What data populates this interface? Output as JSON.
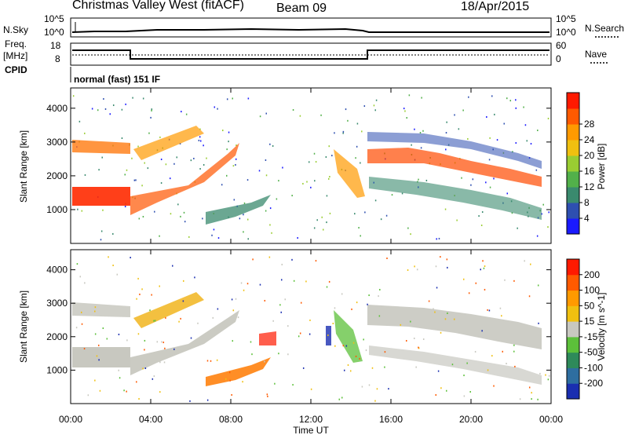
{
  "header": {
    "station": "Christmas Valley West (fitACF)",
    "beam": "Beam 09",
    "date": "18/Apr/2015",
    "cpid_label": "CPID",
    "cpid_value": "normal (fast) 151 IF"
  },
  "strips": {
    "nsky_label": "N.Sky",
    "nsky_top": "10^5",
    "nsky_bottom": "10^0",
    "nsearch_label": "N.Search",
    "nsearch_top": "10^5",
    "nsearch_bottom": "10^0",
    "freq_label": "Freq.",
    "freq_unit": "[MHz]",
    "freq_top": "18",
    "freq_bottom": "8",
    "nave_label": "Nave",
    "nave_top": "60",
    "nave_bottom": "0"
  },
  "chart_data": [
    {
      "type": "heatmap",
      "title": "",
      "xlabel": "Time UT",
      "ylabel": "Slant Range [km]",
      "x_ticks": [
        "00:00",
        "04:00",
        "08:00",
        "12:00",
        "16:00",
        "20:00",
        "00:00"
      ],
      "y_ticks": [
        "1000",
        "2000",
        "3000",
        "4000"
      ],
      "ylim": [
        0,
        4600
      ],
      "colorbar_label": "Power [dB]",
      "colorbar_ticks": [
        "4",
        "8",
        "12",
        "16",
        "20",
        "24",
        "28"
      ],
      "colorbar_colors": [
        "#1a1aff",
        "#2e4fb0",
        "#3a8a6e",
        "#52b04a",
        "#9acd32",
        "#f0c010",
        "#ff9a00",
        "#ff5a00",
        "#ff1a00"
      ]
    },
    {
      "type": "heatmap",
      "title": "",
      "xlabel": "Time UT",
      "ylabel": "Slant Range [km]",
      "x_ticks": [
        "00:00",
        "04:00",
        "08:00",
        "12:00",
        "16:00",
        "20:00",
        "00:00"
      ],
      "y_ticks": [
        "1000",
        "2000",
        "3000",
        "4000"
      ],
      "ylim": [
        0,
        4600
      ],
      "colorbar_label": "Velocity [m s^-1]",
      "colorbar_ticks": [
        "200",
        "100",
        "50",
        "15",
        "-15",
        "-50",
        "-100",
        "-200"
      ],
      "colorbar_colors": [
        "#1a2eb0",
        "#2e6ea0",
        "#2e8a5a",
        "#5cc03a",
        "#c8c8c0",
        "#f0c010",
        "#ff9a00",
        "#ff5a00",
        "#ff1a00"
      ]
    }
  ],
  "xaxis_title": "Time UT"
}
